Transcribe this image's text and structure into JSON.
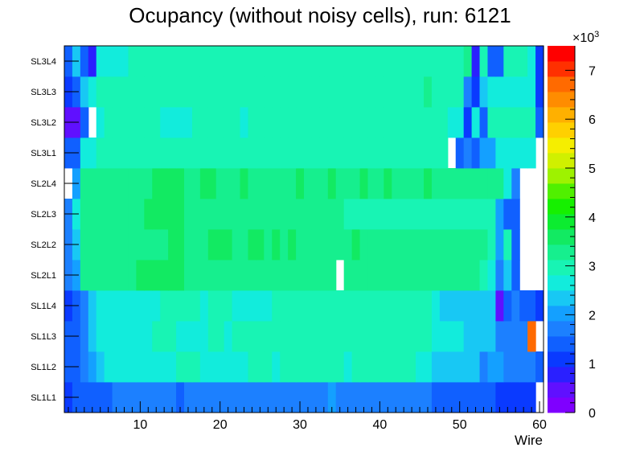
{
  "chart_data": {
    "type": "heatmap",
    "title": "Ocupancy (without noisy cells), run: 6121",
    "xlabel": "Wire",
    "ylabel": "",
    "x_range": [
      0.5,
      60.5
    ],
    "x_ticks": [
      "10",
      "20",
      "30",
      "40",
      "50",
      "60"
    ],
    "x_tick_values": [
      10,
      20,
      30,
      40,
      50,
      60
    ],
    "row_labels": [
      "SL1L1",
      "SL1L2",
      "SL1L3",
      "SL1L4",
      "SL2L1",
      "SL2L2",
      "SL2L3",
      "SL2L4",
      "SL3L1",
      "SL3L2",
      "SL3L3",
      "SL3L4"
    ],
    "colorbar": {
      "range": [
        0,
        7.5
      ],
      "multiplier_base": "×10",
      "multiplier_exponent": "3",
      "ticks": [
        "0",
        "1",
        "2",
        "3",
        "4",
        "5",
        "6",
        "7"
      ],
      "tick_values": [
        0,
        1,
        2,
        3,
        4,
        5,
        6,
        7
      ]
    },
    "values_unit_note": "",
    "values": [
      [
        1.15,
        1.3,
        1.3,
        1.3,
        1.3,
        1.45,
        1.65,
        1.65,
        1.65,
        1.65,
        1.65,
        1.65,
        1.65,
        1.65,
        1.3,
        1.65,
        1.65,
        1.65,
        1.65,
        1.65,
        1.65,
        1.65,
        1.65,
        1.65,
        1.65,
        1.65,
        1.65,
        1.65,
        1.65,
        1.65,
        1.65,
        1.65,
        1.65,
        2.0,
        1.65,
        1.65,
        1.65,
        1.65,
        1.65,
        1.65,
        1.65,
        1.65,
        1.65,
        1.65,
        1.65,
        1.65,
        1.3,
        1.3,
        1.3,
        1.3,
        1.3,
        1.45,
        1.3,
        1.3,
        1.15,
        1.15,
        1.15,
        1.15,
        1.15,
        0
      ],
      [
        1.3,
        1.45,
        1.65,
        2.1,
        2.4,
        2.6,
        2.7,
        2.7,
        2.7,
        2.7,
        2.7,
        2.7,
        2.7,
        2.7,
        2.9,
        2.9,
        2.9,
        2.7,
        2.7,
        2.7,
        2.7,
        2.7,
        2.7,
        2.9,
        2.9,
        2.9,
        2.7,
        3.05,
        3.05,
        3.05,
        3.05,
        3.05,
        3.05,
        2.9,
        2.9,
        2.7,
        3.05,
        2.9,
        2.9,
        2.9,
        2.9,
        2.9,
        3.05,
        3.05,
        2.7,
        2.7,
        2.4,
        2.4,
        2.4,
        2.4,
        2.4,
        2.4,
        1.85,
        2.1,
        2.1,
        1.85,
        1.85,
        1.85,
        1.65,
        1.3
      ],
      [
        1.3,
        1.45,
        1.8,
        2.4,
        2.6,
        2.6,
        2.7,
        2.7,
        2.7,
        2.7,
        2.7,
        2.9,
        2.9,
        2.9,
        2.7,
        2.7,
        2.7,
        2.7,
        2.9,
        2.9,
        2.7,
        2.9,
        2.9,
        2.9,
        2.9,
        3.05,
        3.05,
        3.05,
        3.05,
        3.05,
        3.05,
        3.05,
        3.05,
        2.9,
        2.9,
        2.9,
        2.9,
        2.9,
        2.9,
        2.9,
        2.9,
        3.05,
        3.05,
        3.05,
        2.9,
        2.9,
        2.7,
        2.7,
        2.7,
        2.7,
        2.4,
        2.4,
        2.4,
        2.4,
        1.85,
        1.85,
        1.85,
        1.65,
        6.8,
        0
      ],
      [
        1.15,
        1.45,
        1.65,
        2.4,
        2.6,
        2.6,
        2.6,
        2.6,
        2.6,
        2.6,
        2.6,
        2.6,
        2.9,
        2.9,
        2.9,
        2.9,
        2.9,
        2.7,
        2.9,
        2.9,
        2.9,
        2.7,
        2.7,
        2.7,
        2.7,
        2.7,
        2.9,
        2.9,
        3.05,
        3.05,
        3.05,
        3.05,
        3.05,
        2.9,
        2.9,
        2.9,
        3.05,
        2.9,
        2.9,
        2.9,
        2.9,
        2.9,
        3.05,
        3.05,
        2.9,
        2.9,
        2.7,
        2.4,
        2.4,
        2.4,
        2.4,
        2.4,
        2.4,
        2.4,
        0.55,
        1.45,
        1.65,
        1.45,
        1.3,
        1.15
      ],
      [
        1.8,
        2.1,
        3.25,
        3.25,
        3.25,
        3.25,
        3.25,
        3.25,
        3.4,
        3.6,
        3.6,
        3.6,
        3.6,
        3.6,
        3.6,
        3.25,
        3.25,
        3.25,
        3.25,
        3.25,
        3.4,
        3.4,
        3.4,
        3.4,
        3.4,
        3.4,
        3.4,
        3.4,
        3.4,
        3.4,
        3.25,
        3.25,
        3.25,
        3.25,
        0,
        3.4,
        3.25,
        3.4,
        3.25,
        3.25,
        3.25,
        3.25,
        3.4,
        3.4,
        3.4,
        3.4,
        3.4,
        3.25,
        3.25,
        3.25,
        3.25,
        3.25,
        3.1,
        2.6,
        1.6,
        2.2,
        1.3,
        0,
        0,
        0
      ],
      [
        1.6,
        2.3,
        3.25,
        3.25,
        3.25,
        3.25,
        3.25,
        3.25,
        3.25,
        3.25,
        3.25,
        3.4,
        3.4,
        3.6,
        3.6,
        3.4,
        3.4,
        3.4,
        3.6,
        3.6,
        3.6,
        3.4,
        3.4,
        3.6,
        3.6,
        3.4,
        3.6,
        3.4,
        3.6,
        3.4,
        3.25,
        3.25,
        3.25,
        3.25,
        3.25,
        3.25,
        3.6,
        3.4,
        3.25,
        3.25,
        3.25,
        3.25,
        3.25,
        3.25,
        3.25,
        3.25,
        3.25,
        3.25,
        3.25,
        3.25,
        3.25,
        3.25,
        3.25,
        3.1,
        2.1,
        3.1,
        1.45,
        0,
        0,
        0
      ],
      [
        1.6,
        2.6,
        3.25,
        3.25,
        3.4,
        3.4,
        3.4,
        3.4,
        3.4,
        3.4,
        3.6,
        3.6,
        3.6,
        3.6,
        3.6,
        3.4,
        3.4,
        3.25,
        3.25,
        3.25,
        3.25,
        3.25,
        3.25,
        3.25,
        3.25,
        3.25,
        3.25,
        3.25,
        3.25,
        3.25,
        3.25,
        3.25,
        3.25,
        3.25,
        3.4,
        3.1,
        3.1,
        3.1,
        3.1,
        3.1,
        3.1,
        3.1,
        3.1,
        3.1,
        3.1,
        3.1,
        3.1,
        3.1,
        3.1,
        3.1,
        3.1,
        3.1,
        3.1,
        3.1,
        2.1,
        1.45,
        1.45,
        0,
        0,
        0
      ],
      [
        0,
        2.1,
        3.4,
        3.4,
        3.4,
        3.4,
        3.4,
        3.4,
        3.4,
        3.4,
        3.4,
        3.6,
        3.6,
        3.6,
        3.6,
        3.4,
        3.4,
        3.6,
        3.6,
        3.4,
        3.4,
        3.4,
        3.6,
        3.4,
        3.4,
        3.4,
        3.4,
        3.4,
        3.4,
        3.6,
        3.4,
        3.4,
        3.4,
        3.6,
        3.4,
        3.4,
        3.4,
        3.6,
        3.4,
        3.4,
        3.6,
        3.4,
        3.4,
        3.4,
        3.4,
        3.6,
        3.4,
        3.4,
        3.4,
        3.4,
        3.4,
        3.4,
        3.4,
        3.4,
        3.4,
        2.6,
        1.8,
        0,
        0,
        0
      ],
      [
        1.3,
        1.45,
        2.6,
        2.6,
        2.9,
        2.9,
        2.9,
        3.05,
        3.05,
        3.05,
        3.05,
        3.05,
        3.05,
        3.05,
        3.05,
        3.05,
        3.05,
        2.9,
        2.9,
        2.9,
        3.05,
        3.05,
        3.05,
        3.05,
        3.05,
        3.05,
        3.05,
        3.05,
        3.05,
        3.05,
        3.05,
        3.05,
        3.05,
        3.05,
        3.05,
        3.05,
        3.05,
        3.05,
        3.05,
        3.05,
        3.05,
        3.05,
        3.05,
        3.05,
        3.05,
        3.05,
        3.05,
        3.05,
        0,
        1.3,
        1.85,
        1.45,
        2.1,
        2.1,
        2.7,
        2.7,
        2.7,
        2.7,
        2.7,
        0
      ],
      [
        0.45,
        0.55,
        1.3,
        0,
        2.6,
        2.9,
        3.05,
        3.05,
        3.05,
        3.05,
        3.05,
        3.05,
        2.7,
        2.7,
        2.7,
        2.7,
        3.05,
        2.9,
        3.05,
        3.05,
        3.05,
        2.9,
        2.7,
        3.05,
        3.05,
        3.05,
        3.05,
        3.05,
        3.05,
        3.05,
        3.05,
        3.05,
        3.05,
        3.05,
        3.05,
        3.05,
        3.05,
        3.05,
        3.05,
        3.05,
        3.05,
        3.05,
        3.05,
        3.05,
        3.05,
        3.05,
        3.05,
        3.05,
        2.7,
        2.7,
        1.15,
        2.6,
        1.3,
        2.9,
        2.9,
        2.9,
        2.9,
        2.9,
        2.9,
        1.3
      ],
      [
        1.15,
        1.3,
        2.4,
        2.6,
        2.9,
        2.9,
        2.9,
        3.05,
        3.05,
        3.05,
        3.05,
        3.05,
        3.05,
        3.05,
        3.05,
        3.05,
        3.05,
        3.05,
        3.05,
        3.05,
        3.05,
        3.05,
        3.05,
        2.9,
        2.9,
        3.05,
        3.05,
        3.05,
        3.05,
        3.05,
        3.05,
        3.05,
        3.05,
        3.05,
        3.05,
        3.05,
        3.05,
        3.05,
        3.05,
        3.05,
        3.05,
        3.05,
        3.05,
        3.05,
        3.05,
        3.2,
        3.05,
        3.05,
        3.05,
        2.9,
        1.8,
        1.15,
        2.4,
        2.7,
        2.7,
        2.7,
        2.7,
        2.7,
        2.7,
        1.15
      ],
      [
        1.3,
        2.4,
        1.3,
        0.9,
        2.6,
        2.6,
        2.7,
        2.7,
        2.9,
        2.9,
        2.9,
        2.9,
        2.9,
        2.9,
        2.9,
        2.9,
        2.9,
        2.9,
        3.05,
        2.9,
        2.9,
        2.9,
        2.9,
        2.9,
        2.9,
        2.9,
        2.9,
        2.9,
        2.9,
        2.9,
        2.9,
        2.9,
        2.9,
        2.9,
        2.9,
        2.9,
        3.05,
        3.05,
        3.05,
        3.05,
        3.05,
        3.05,
        3.05,
        3.05,
        3.05,
        3.05,
        3.05,
        3.05,
        3.05,
        3.05,
        3.4,
        0.9,
        2.9,
        1.3,
        1.45,
        2.9,
        2.9,
        2.9,
        2.7,
        1.15
      ]
    ]
  }
}
